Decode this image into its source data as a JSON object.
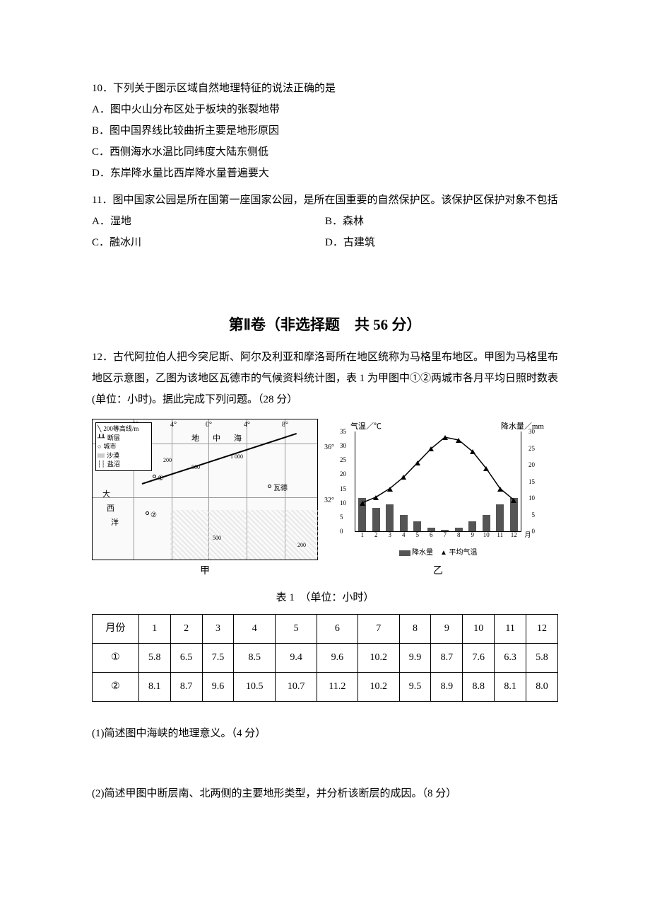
{
  "q10": {
    "stem": "10．下列关于图示区域自然地理特征的说法正确的是",
    "optA": "A．图中火山分布区处于板块的张裂地带",
    "optB": "B．图中国界线比较曲折主要是地形原因",
    "optC": "C．西侧海水水温比同纬度大陆东侧低",
    "optD": "D．东岸降水量比西岸降水量普遍要大"
  },
  "q11": {
    "stem": "11．图中国家公园是所在国第一座国家公园，是所在国重要的自然保护区。该保护区保护对象不包括",
    "optA": "A．湿地",
    "optB": "B．森林",
    "optC": "C．融冰川",
    "optD": "D．古建筑"
  },
  "section2_title": "第Ⅱ卷（非选择题　共 56 分）",
  "q12": {
    "stem": "12．古代阿拉伯人把今突尼斯、阿尔及利亚和摩洛哥所在地区统称为马格里布地区。甲图为马格里布地区示意图，乙图为该地区瓦德市的气候资料统计图，表 1 为甲图中①②两城市各月平均日照时数表(单位：小时)。据此完成下列问题。（28 分）",
    "map_caption": "甲",
    "chart_caption": "乙",
    "table_title": "表 1　（单位：小时）",
    "sub1": "(1)简述图中海峡的地理意义。（4 分）",
    "sub2": "(2)简述甲图中断层南、北两侧的主要地形类型，并分析该断层的成因。（8 分）"
  },
  "map": {
    "legend_title": "200等高线/m",
    "legend_fault": "断层",
    "legend_city": "城市",
    "legend_desert": "沙漠",
    "legend_salt": "盐沼",
    "lons": [
      "8°",
      "4°",
      "0°",
      "4°",
      "8°"
    ],
    "lats": [
      "36°",
      "32°"
    ],
    "label_med": "地　中　海",
    "label_atl1": "大",
    "label_atl2": "西",
    "label_atl3": "洋",
    "label_wade": "瓦德",
    "contours": [
      "200",
      "500",
      "1 000",
      "500",
      "200"
    ]
  },
  "chart": {
    "title_left": "气温／℃",
    "title_right": "降水量／mm",
    "xlabel": "月",
    "yticks_left": [
      "0",
      "5",
      "10",
      "15",
      "20",
      "25",
      "30",
      "35"
    ],
    "yticks_right": [
      "0",
      "5",
      "10",
      "15",
      "20",
      "25",
      "30"
    ],
    "xticks": [
      "1",
      "2",
      "3",
      "4",
      "5",
      "6",
      "7",
      "8",
      "9",
      "10",
      "11",
      "12"
    ],
    "legend_precip": "降水量",
    "legend_temp": "平均气温",
    "temp_values": [
      10,
      12,
      15,
      19,
      24,
      29,
      33,
      32,
      28,
      22,
      15,
      11
    ],
    "precip_values": [
      10,
      7,
      8,
      5,
      3,
      1,
      0.5,
      1,
      3,
      5,
      8,
      10
    ],
    "temp_max": 35,
    "precip_max": 30,
    "bar_color": "#555555",
    "line_color": "#000000",
    "bg": "#ffffff"
  },
  "table": {
    "header": [
      "月份",
      "1",
      "2",
      "3",
      "4",
      "5",
      "6",
      "7",
      "8",
      "9",
      "10",
      "11",
      "12"
    ],
    "row1_label": "①",
    "row1": [
      "5.8",
      "6.5",
      "7.5",
      "8.5",
      "9.4",
      "9.6",
      "10.2",
      "9.9",
      "8.7",
      "7.6",
      "6.3",
      "5.8"
    ],
    "row2_label": "②",
    "row2": [
      "8.1",
      "8.7",
      "9.6",
      "10.5",
      "10.7",
      "11.2",
      "10.2",
      "9.5",
      "8.9",
      "8.8",
      "8.1",
      "8.0"
    ]
  }
}
